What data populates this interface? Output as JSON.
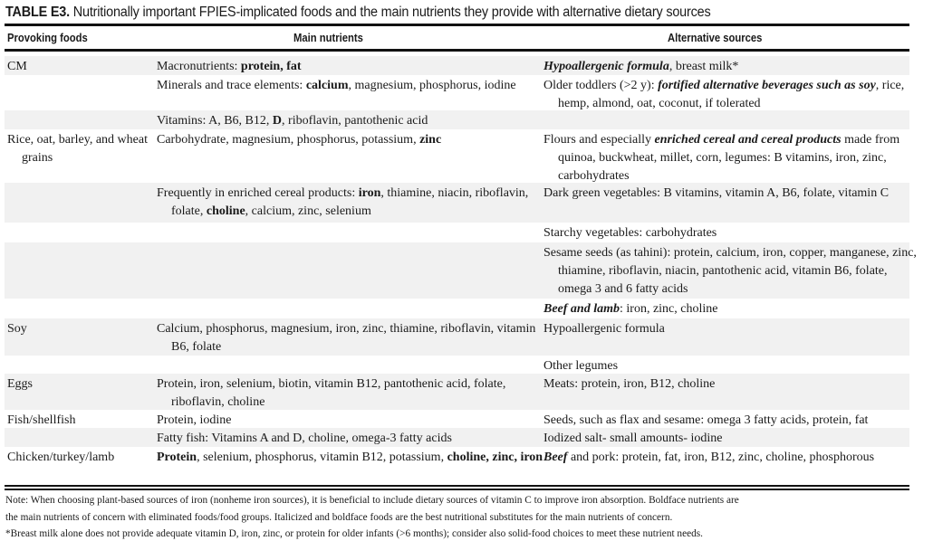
{
  "title": {
    "label": "TABLE E3.",
    "text": " Nutritionally important FPIES-implicated foods and the main nutrients they provide with alternative dietary sources"
  },
  "headers": [
    "Provoking foods",
    "Main nutrients",
    "Alternative sources"
  ],
  "rows": [
    {
      "c1": [
        {
          "t": "CM"
        }
      ],
      "c2": [
        {
          "t": "Macronutrients: "
        },
        {
          "t": "protein, fat",
          "s": "b"
        }
      ],
      "c3": [
        {
          "t": "Hypoallergenic formula",
          "s": "bi"
        },
        {
          "t": ", breast milk*"
        }
      ]
    },
    {
      "c1": [],
      "c2": [
        {
          "t": "Minerals and trace elements: "
        },
        {
          "t": "calcium",
          "s": "b"
        },
        {
          "t": ", magnesium, phosphorus, iodine"
        }
      ],
      "c3": [
        {
          "t": "Older toddlers (>2 y): "
        },
        {
          "t": "fortified alternative beverages such as soy",
          "s": "bi"
        },
        {
          "t": ", rice, hemp, almond, oat, coconut, if tolerated"
        }
      ]
    },
    {
      "c1": [],
      "c2": [
        {
          "t": "Vitamins: A, B6, B12, "
        },
        {
          "t": "D",
          "s": "b"
        },
        {
          "t": ", riboflavin, pantothenic acid"
        }
      ],
      "c3": []
    },
    {
      "c1": [
        {
          "t": "Rice, oat, barley, and wheat grains"
        }
      ],
      "c2": [
        {
          "t": "Carbohydrate, magnesium, phosphorus, potassium, "
        },
        {
          "t": "zinc",
          "s": "b"
        }
      ],
      "c3": [
        {
          "t": "Flours and especially "
        },
        {
          "t": "enriched cereal and cereal products",
          "s": "bi"
        },
        {
          "t": " made from quinoa, buckwheat, millet, corn, legumes: B vitamins, iron, zinc, carbohydrates"
        }
      ]
    },
    {
      "c1": [],
      "c2": [
        {
          "t": "Frequently in enriched cereal products: "
        },
        {
          "t": "iron",
          "s": "b"
        },
        {
          "t": ", thiamine, niacin, riboflavin, folate, "
        },
        {
          "t": "choline",
          "s": "b"
        },
        {
          "t": ", calcium, zinc, selenium"
        }
      ],
      "c3": [
        {
          "t": "Dark green vegetables: B vitamins, vitamin A, B6, folate, vitamin C"
        }
      ]
    },
    {
      "c1": [],
      "c2": [],
      "c3": [
        {
          "t": "Starchy vegetables: carbohydrates"
        }
      ]
    },
    {
      "c1": [],
      "c2": [],
      "c3": [
        {
          "t": "Sesame seeds (as tahini): protein, calcium, iron, copper, manganese, zinc, thiamine, riboflavin, niacin, pantothenic acid, vitamin B6, folate, omega 3 and 6 fatty acids"
        }
      ]
    },
    {
      "c1": [],
      "c2": [],
      "c3": [
        {
          "t": "Beef and lamb",
          "s": "bi"
        },
        {
          "t": ": iron, zinc, choline"
        }
      ]
    },
    {
      "c1": [
        {
          "t": "Soy"
        }
      ],
      "c2": [
        {
          "t": "Calcium, phosphorus, magnesium, iron, zinc, thiamine, riboflavin, vitamin B6, folate"
        }
      ],
      "c3": [
        {
          "t": "Hypoallergenic formula"
        }
      ]
    },
    {
      "c1": [],
      "c2": [],
      "c3": [
        {
          "t": "Other legumes"
        }
      ]
    },
    {
      "c1": [
        {
          "t": "Eggs"
        }
      ],
      "c2": [
        {
          "t": "Protein, iron, selenium, biotin, vitamin B12, pantothenic acid, folate, riboflavin, choline"
        }
      ],
      "c3": [
        {
          "t": "Meats: protein, iron, B12, choline"
        }
      ]
    },
    {
      "c1": [
        {
          "t": "Fish/shellfish"
        }
      ],
      "c2": [
        {
          "t": "Protein, iodine"
        }
      ],
      "c3": [
        {
          "t": "Seeds, such as flax and sesame: omega 3 fatty acids, protein, fat"
        }
      ]
    },
    {
      "c1": [],
      "c2": [
        {
          "t": "Fatty fish: Vitamins A and D, choline, omega-3 fatty acids"
        }
      ],
      "c3": [
        {
          "t": "Iodized salt- small amounts- iodine"
        }
      ]
    },
    {
      "c1": [
        {
          "t": "Chicken/turkey/lamb"
        }
      ],
      "c2": [
        {
          "t": "Protein",
          "s": "b"
        },
        {
          "t": ", selenium, phosphorus, vitamin B12, potassium, "
        },
        {
          "t": "choline, zinc, iron",
          "s": "b"
        }
      ],
      "c3": [
        {
          "t": "Beef",
          "s": "bi"
        },
        {
          "t": " and pork: protein, fat, iron, B12, zinc, choline, phosphorous"
        }
      ]
    }
  ],
  "notes": [
    "Note: When choosing plant-based sources of iron (nonheme iron sources), it is beneficial to include dietary sources of vitamin C to improve iron absorption. Boldface nutrients are",
    "the main nutrients of concern with eliminated foods/food groups. Italicized and boldface foods are the best nutritional substitutes for the main nutrients of concern.",
    "*Breast milk alone does not provide adequate vitamin D, iron, zinc, or protein for older infants (>6 months); consider also solid-food choices to meet these nutrient needs."
  ]
}
